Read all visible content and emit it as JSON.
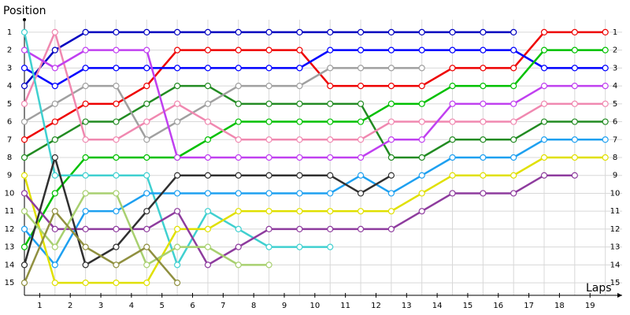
{
  "chart_data": {
    "type": "lap",
    "y_label": "Position",
    "x_label": "Laps",
    "x": [
      0,
      1,
      2,
      3,
      4,
      5,
      6,
      7,
      8,
      9,
      10,
      11,
      12,
      13,
      14,
      15,
      16,
      17,
      18,
      19
    ],
    "xlim": [
      0,
      19.55
    ],
    "ylim": [
      0.3,
      15.7
    ],
    "y_reversed": true,
    "grid": true,
    "xticks": [
      {
        "value": 0.5,
        "label": "1"
      },
      {
        "value": 1.5,
        "label": "2"
      },
      {
        "value": 2.5,
        "label": "3"
      },
      {
        "value": 3.5,
        "label": "4"
      },
      {
        "value": 4.5,
        "label": "5"
      },
      {
        "value": 5.5,
        "label": "6"
      },
      {
        "value": 6.5,
        "label": "7"
      },
      {
        "value": 7.5,
        "label": "8"
      },
      {
        "value": 8.5,
        "label": "9"
      },
      {
        "value": 9.5,
        "label": "10"
      },
      {
        "value": 10.5,
        "label": "11"
      },
      {
        "value": 11.5,
        "label": "12"
      },
      {
        "value": 12.5,
        "label": "13"
      },
      {
        "value": 13.5,
        "label": "14"
      },
      {
        "value": 14.5,
        "label": "15"
      },
      {
        "value": 15.5,
        "label": "16"
      },
      {
        "value": 16.5,
        "label": "17"
      },
      {
        "value": 17.5,
        "label": "18"
      },
      {
        "value": 18.5,
        "label": "19"
      }
    ],
    "yticks": [
      1,
      2,
      3,
      4,
      5,
      6,
      7,
      8,
      9,
      10,
      11,
      12,
      13,
      14,
      15
    ],
    "series": [
      {
        "color": "#0000c0",
        "values": [
          4,
          2,
          1,
          1,
          1,
          1,
          1,
          1,
          1,
          1,
          1,
          1,
          1,
          1,
          1,
          1,
          1,
          null,
          null,
          null
        ]
      },
      {
        "color": "#ee0000",
        "values": [
          7,
          6,
          5,
          5,
          4,
          2,
          2,
          2,
          2,
          2,
          4,
          4,
          4,
          4,
          3,
          3,
          3,
          1,
          1,
          1
        ]
      },
      {
        "color": "#0000ff",
        "values": [
          3,
          4,
          3,
          3,
          3,
          3,
          3,
          3,
          3,
          3,
          2,
          2,
          2,
          2,
          2,
          2,
          2,
          3,
          3,
          3
        ]
      },
      {
        "color": "#00c000",
        "values": [
          13,
          10,
          8,
          8,
          8,
          8,
          7,
          6,
          6,
          6,
          6,
          6,
          5,
          5,
          4,
          4,
          4,
          2,
          2,
          2
        ]
      },
      {
        "color": "#228b22",
        "values": [
          8,
          7,
          6,
          6,
          5,
          4,
          4,
          5,
          5,
          5,
          5,
          5,
          8,
          8,
          7,
          7,
          7,
          6,
          6,
          6
        ]
      },
      {
        "color": "#a0a0a0",
        "values": [
          6,
          5,
          4,
          4,
          7,
          6,
          5,
          4,
          4,
          4,
          3,
          3,
          3,
          3,
          null,
          null,
          null,
          null,
          null,
          null
        ]
      },
      {
        "color": "#f088b0",
        "values": [
          5,
          1,
          7,
          7,
          6,
          5,
          6,
          7,
          7,
          7,
          7,
          7,
          6,
          6,
          6,
          6,
          6,
          5,
          5,
          5
        ]
      },
      {
        "color": "#c040f0",
        "values": [
          2,
          3,
          2,
          2,
          2,
          8,
          8,
          8,
          8,
          8,
          8,
          8,
          7,
          7,
          5,
          5,
          5,
          4,
          4,
          4
        ]
      },
      {
        "color": "#40d0d0",
        "values": [
          1,
          9,
          9,
          9,
          9,
          14,
          11,
          12,
          13,
          13,
          13,
          null,
          null,
          null,
          null,
          null,
          null,
          null,
          null,
          null
        ]
      },
      {
        "color": "#1ea0f0",
        "values": [
          12,
          14,
          11,
          11,
          10,
          10,
          10,
          10,
          10,
          10,
          10,
          9,
          10,
          9,
          8,
          8,
          8,
          7,
          7,
          7
        ]
      },
      {
        "color": "#e0e000",
        "values": [
          9,
          15,
          15,
          15,
          15,
          12,
          12,
          11,
          11,
          11,
          11,
          11,
          11,
          10,
          9,
          9,
          9,
          8,
          8,
          8
        ]
      },
      {
        "color": "#8e3c9e",
        "values": [
          10,
          12,
          12,
          12,
          12,
          11,
          14,
          13,
          12,
          12,
          12,
          12,
          12,
          11,
          10,
          10,
          10,
          9,
          9,
          null
        ]
      },
      {
        "color": "#303030",
        "values": [
          14,
          8,
          14,
          13,
          11,
          9,
          9,
          9,
          9,
          9,
          9,
          10,
          9,
          null,
          null,
          null,
          null,
          null,
          null,
          null
        ]
      },
      {
        "color": "#a8d070",
        "values": [
          11,
          13,
          10,
          10,
          14,
          13,
          13,
          14,
          14,
          null,
          null,
          null,
          null,
          null,
          null,
          null,
          null,
          null,
          null,
          null
        ]
      },
      {
        "color": "#909040",
        "values": [
          15,
          11,
          13,
          14,
          13,
          15,
          null,
          null,
          null,
          null,
          null,
          null,
          null,
          null,
          null,
          null,
          null,
          null,
          null,
          null
        ]
      }
    ]
  }
}
